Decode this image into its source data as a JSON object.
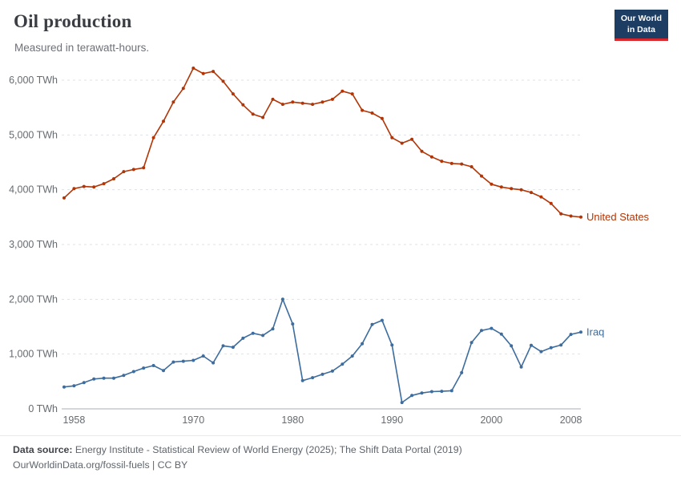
{
  "header": {
    "title": "Oil production",
    "subtitle": "Measured in terawatt-hours.",
    "logo": {
      "line1": "Our World",
      "line2": "in Data"
    }
  },
  "footer": {
    "source_label": "Data source:",
    "source_text": " Energy Institute - Statistical Review of World Energy (2025); The Shift Data Portal (2019)",
    "link_text": "OurWorldinData.org/fossil-fuels | CC BY"
  },
  "chart_data": {
    "type": "line",
    "title": "Oil production",
    "subtitle": "Measured in terawatt-hours.",
    "unit_short": "TWh",
    "grid": "dashed-horizontal",
    "legend_position": "end-of-line-labels",
    "xlim": [
      1957,
      2009
    ],
    "ylim": [
      0,
      6400
    ],
    "xticks": [
      1958,
      1970,
      1980,
      1990,
      2000,
      2008
    ],
    "yticks": [
      0,
      1000,
      2000,
      3000,
      4000,
      5000,
      6000
    ],
    "x": [
      1957,
      1958,
      1959,
      1960,
      1961,
      1962,
      1963,
      1964,
      1965,
      1966,
      1967,
      1968,
      1969,
      1970,
      1971,
      1972,
      1973,
      1974,
      1975,
      1976,
      1977,
      1978,
      1979,
      1980,
      1981,
      1982,
      1983,
      1984,
      1985,
      1986,
      1987,
      1988,
      1989,
      1990,
      1991,
      1992,
      1993,
      1994,
      1995,
      1996,
      1997,
      1998,
      1999,
      2000,
      2001,
      2002,
      2003,
      2004,
      2005,
      2006,
      2007,
      2008,
      2009
    ],
    "series": [
      {
        "name": "United States",
        "color": "#b13507",
        "values": [
          3850,
          4020,
          4060,
          4050,
          4110,
          4200,
          4330,
          4370,
          4400,
          4950,
          5250,
          5600,
          5850,
          6220,
          6120,
          6160,
          5980,
          5750,
          5550,
          5380,
          5320,
          5650,
          5560,
          5600,
          5580,
          5560,
          5600,
          5650,
          5800,
          5750,
          5450,
          5400,
          5300,
          4950,
          4850,
          4920,
          4700,
          4600,
          4520,
          4480,
          4470,
          4420,
          4250,
          4100,
          4050,
          4020,
          4000,
          3950,
          3870,
          3750,
          3560,
          3520,
          3500
        ]
      },
      {
        "name": "Iraq",
        "color": "#3d6c9e",
        "values": [
          400,
          420,
          480,
          545,
          560,
          560,
          610,
          680,
          745,
          790,
          700,
          855,
          870,
          885,
          965,
          840,
          1150,
          1125,
          1290,
          1380,
          1340,
          1460,
          2000,
          1550,
          515,
          570,
          630,
          690,
          815,
          965,
          1190,
          1540,
          1615,
          1165,
          115,
          245,
          290,
          315,
          320,
          330,
          660,
          1210,
          1430,
          1470,
          1365,
          1150,
          765,
          1160,
          1045,
          1115,
          1165,
          1360,
          1400
        ]
      }
    ]
  }
}
